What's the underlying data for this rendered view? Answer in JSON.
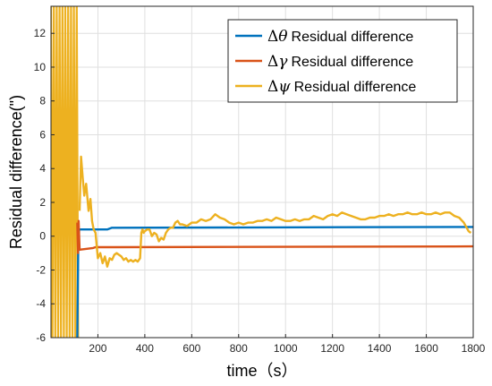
{
  "chart_data": {
    "type": "line",
    "title": "",
    "xlabel": "time（s）",
    "ylabel": "Residual difference(\")",
    "xlim": [
      0,
      1800
    ],
    "ylim": [
      -6,
      13.6
    ],
    "xticks": [
      200,
      400,
      600,
      800,
      1000,
      1200,
      1400,
      1600,
      1800
    ],
    "yticks": [
      -6,
      -4,
      -2,
      0,
      2,
      4,
      6,
      8,
      10,
      12
    ],
    "grid": true,
    "legend_position": "top-right",
    "series": [
      {
        "name": "Residual difference",
        "symbol": "Δθ",
        "color": "#0072BD",
        "x": [
          112,
          116,
          120,
          125,
          240,
          260,
          1800
        ],
        "y": [
          -6.0,
          -1.0,
          0.4,
          0.4,
          0.4,
          0.5,
          0.55
        ]
      },
      {
        "name": "Residual difference",
        "symbol": "Δγ",
        "color": "#D95319",
        "x": [
          112,
          115,
          118,
          122,
          180,
          190,
          260,
          1800
        ],
        "y": [
          0.8,
          -1.0,
          0.9,
          -0.8,
          -0.7,
          -0.65,
          -0.65,
          -0.6
        ]
      },
      {
        "name": "Residual difference",
        "symbol": "Δψ",
        "color": "#EDB120",
        "x": [
          122,
          128,
          135,
          142,
          150,
          160,
          168,
          175,
          182,
          190,
          200,
          210,
          220,
          230,
          240,
          250,
          260,
          270,
          280,
          290,
          300,
          310,
          320,
          330,
          340,
          350,
          360,
          370,
          380,
          385,
          390,
          395,
          400,
          410,
          420,
          430,
          440,
          450,
          460,
          470,
          480,
          490,
          500,
          510,
          520,
          530,
          540,
          550,
          560,
          580,
          600,
          620,
          640,
          660,
          680,
          700,
          720,
          740,
          760,
          780,
          800,
          820,
          840,
          860,
          880,
          900,
          920,
          940,
          960,
          980,
          1000,
          1020,
          1040,
          1060,
          1080,
          1100,
          1120,
          1140,
          1160,
          1180,
          1200,
          1220,
          1240,
          1260,
          1280,
          1300,
          1320,
          1340,
          1360,
          1380,
          1400,
          1420,
          1440,
          1460,
          1480,
          1500,
          1520,
          1540,
          1560,
          1580,
          1600,
          1620,
          1640,
          1660,
          1680,
          1700,
          1720,
          1740,
          1760,
          1780,
          1790
        ],
        "y": [
          1.5,
          4.7,
          3.5,
          2.4,
          3.1,
          1.5,
          2.2,
          0.9,
          0.4,
          0.2,
          -1.3,
          -1.0,
          -1.6,
          -1.2,
          -1.8,
          -1.3,
          -1.4,
          -1.1,
          -1.0,
          -1.1,
          -1.2,
          -1.4,
          -1.3,
          -1.5,
          -1.4,
          -1.5,
          -1.4,
          -1.5,
          -1.3,
          0.2,
          0.4,
          0.2,
          0.3,
          0.4,
          0.4,
          0.0,
          0.2,
          0.1,
          -0.3,
          -0.1,
          -0.2,
          0.2,
          0.4,
          0.5,
          0.5,
          0.8,
          0.9,
          0.7,
          0.7,
          0.6,
          0.8,
          0.8,
          1.0,
          0.9,
          1.0,
          1.3,
          1.1,
          1.0,
          0.8,
          0.7,
          0.8,
          0.7,
          0.8,
          0.8,
          0.9,
          0.9,
          1.0,
          0.9,
          1.1,
          1.0,
          0.9,
          0.9,
          1.0,
          0.9,
          1.0,
          1.0,
          1.2,
          1.1,
          1.0,
          1.2,
          1.3,
          1.2,
          1.4,
          1.3,
          1.2,
          1.1,
          1.0,
          1.0,
          1.1,
          1.1,
          1.2,
          1.2,
          1.3,
          1.2,
          1.3,
          1.3,
          1.4,
          1.3,
          1.3,
          1.4,
          1.3,
          1.3,
          1.4,
          1.3,
          1.4,
          1.4,
          1.2,
          1.1,
          0.8,
          0.3,
          0.2
        ]
      }
    ],
    "oscillation_band": {
      "color": "#EDB120",
      "x_start": 0,
      "x_end": 118,
      "y_min": -6,
      "y_max": 13.6
    }
  }
}
